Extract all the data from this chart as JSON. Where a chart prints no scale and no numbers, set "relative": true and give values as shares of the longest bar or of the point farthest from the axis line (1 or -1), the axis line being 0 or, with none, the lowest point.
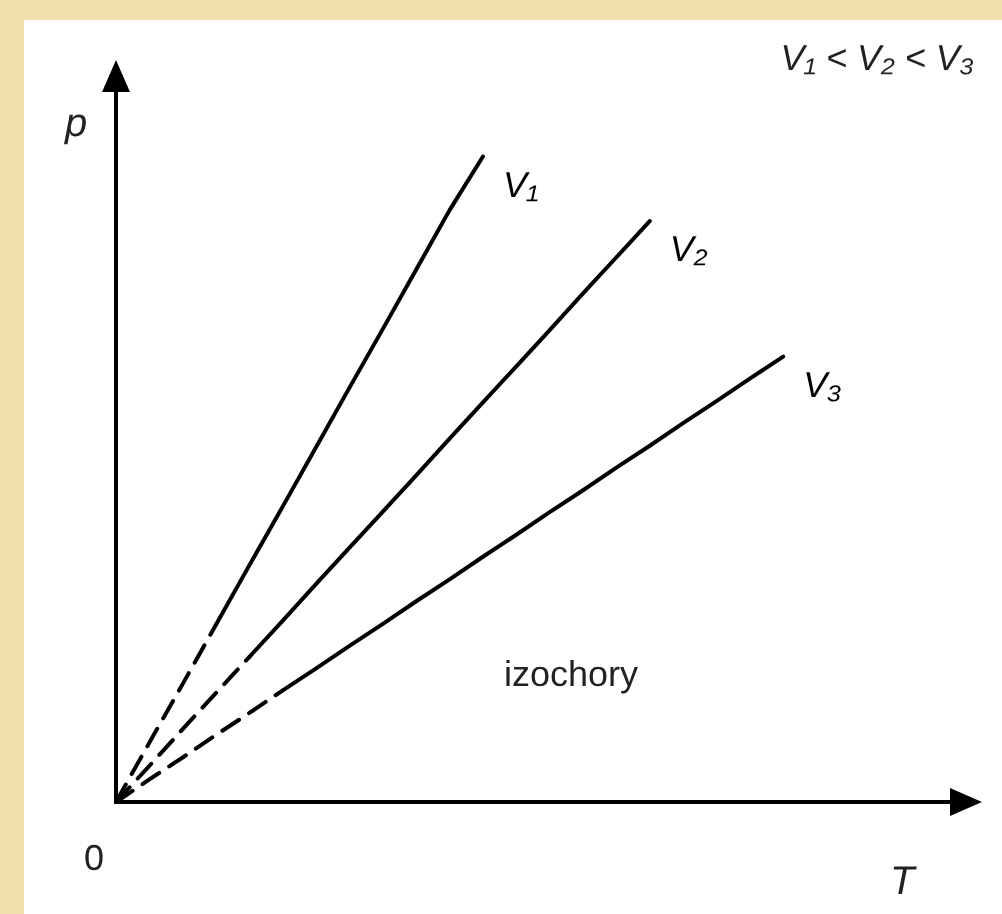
{
  "chart_data": {
    "type": "line",
    "relative": true,
    "xlabel": "T",
    "ylabel": "p",
    "legend": false,
    "grid": false,
    "marker": "none",
    "categories": [
      null,
      null,
      null,
      null,
      null,
      null,
      null,
      null,
      null,
      null,
      null,
      null,
      null,
      null,
      null,
      null,
      null,
      null,
      null,
      null,
      null,
      null,
      null,
      null,
      null,
      null
    ],
    "series": [
      {
        "color": "#000000",
        "line_style": "dashed",
        "values": [
          0,
          0.092,
          0.183,
          0.275,
          null,
          null,
          null,
          null,
          null,
          null,
          null,
          null,
          null,
          null,
          null,
          null,
          null,
          null,
          null,
          null,
          null,
          null,
          null,
          null,
          null,
          null
        ]
      },
      {
        "name": "V₁",
        "color": "#000000",
        "line_style": "solid",
        "values": [
          null,
          null,
          null,
          0.275,
          0.367,
          0.458,
          0.55,
          0.642,
          0.733,
          0.825,
          0.917,
          1,
          null,
          null,
          null,
          null,
          null,
          null,
          null,
          null,
          null,
          null,
          null,
          null,
          null,
          null
        ]
      },
      {
        "color": "#000000",
        "line_style": "dashed",
        "values": [
          0,
          0.056,
          0.113,
          0.169,
          0.225,
          null,
          null,
          null,
          null,
          null,
          null,
          null,
          null,
          null,
          null,
          null,
          null,
          null,
          null,
          null,
          null,
          null,
          null,
          null,
          null,
          null
        ]
      },
      {
        "name": "V₂",
        "color": "#000000",
        "line_style": "solid",
        "values": [
          null,
          null,
          null,
          null,
          0.225,
          0.281,
          0.338,
          0.394,
          0.45,
          0.506,
          0.563,
          0.619,
          0.675,
          0.731,
          0.788,
          0.844,
          0.9,
          null,
          null,
          null,
          null,
          null,
          null,
          null,
          null,
          null
        ]
      },
      {
        "color": "#000000",
        "line_style": "dashed",
        "values": [
          0,
          0.035,
          0.069,
          0.104,
          0.138,
          0.173,
          null,
          null,
          null,
          null,
          null,
          null,
          null,
          null,
          null,
          null,
          null,
          null,
          null,
          null,
          null,
          null,
          null,
          null,
          null,
          null
        ]
      },
      {
        "name": "V₃",
        "color": "#000000",
        "line_style": "solid",
        "values": [
          null,
          null,
          null,
          null,
          null,
          0.173,
          0.207,
          0.242,
          0.276,
          0.311,
          0.345,
          0.38,
          0.414,
          0.449,
          0.483,
          0.518,
          0.552,
          0.587,
          0.621,
          0.656,
          0.69,
          null,
          null,
          null,
          null,
          null
        ]
      }
    ],
    "annotations": [
      "V₁ < V₂ < V₃",
      "izochory",
      "0"
    ]
  }
}
